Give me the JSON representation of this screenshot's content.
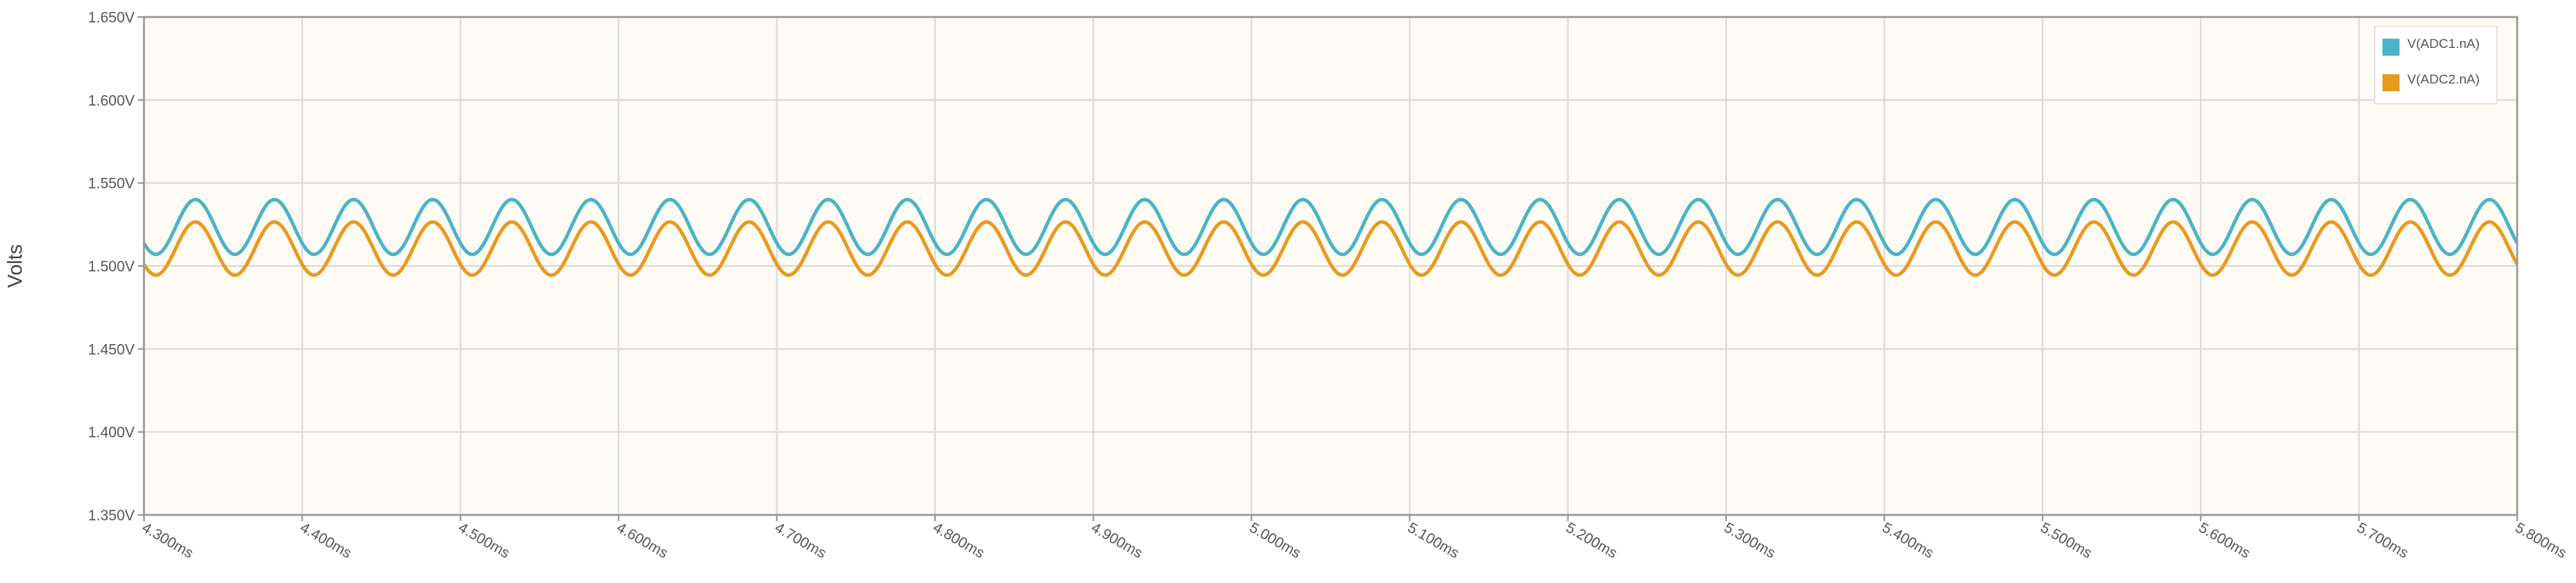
{
  "chart_data": {
    "type": "line",
    "title": "",
    "xlabel": "",
    "ylabel": "Volts",
    "x_unit": "ms",
    "xlim": [
      4.3,
      5.8
    ],
    "ylim": [
      1.35,
      1.65
    ],
    "grid": true,
    "legend_position": "top-right",
    "x_ticks": [
      "4.300ms",
      "4.400ms",
      "4.500ms",
      "4.600ms",
      "4.700ms",
      "4.800ms",
      "4.900ms",
      "5.000ms",
      "5.100ms",
      "5.200ms",
      "5.300ms",
      "5.400ms",
      "5.500ms",
      "5.600ms",
      "5.700ms",
      "5.800ms"
    ],
    "y_ticks": [
      "1.650V",
      "1.600V",
      "1.550V",
      "1.500V",
      "1.450V",
      "1.400V",
      "1.350V"
    ],
    "series": [
      {
        "name": "V(ADC1.nA)",
        "color": "#4ab3c8",
        "waveform": "sine",
        "mean": 1.5235,
        "amplitude": 0.0165,
        "period": 0.05,
        "peak_x": 4.3325,
        "x_start": 4.3,
        "x_end": 5.8
      },
      {
        "name": "V(ADC2.nA)",
        "color": "#e89a20",
        "waveform": "sine",
        "mean": 1.5105,
        "amplitude": 0.016,
        "period": 0.05,
        "peak_x": 4.3325,
        "x_start": 4.3,
        "x_end": 5.8
      }
    ]
  },
  "colors": {
    "plot_background": "#fdfbf3",
    "grid": "#d9d9d9",
    "axis": "#999999"
  }
}
